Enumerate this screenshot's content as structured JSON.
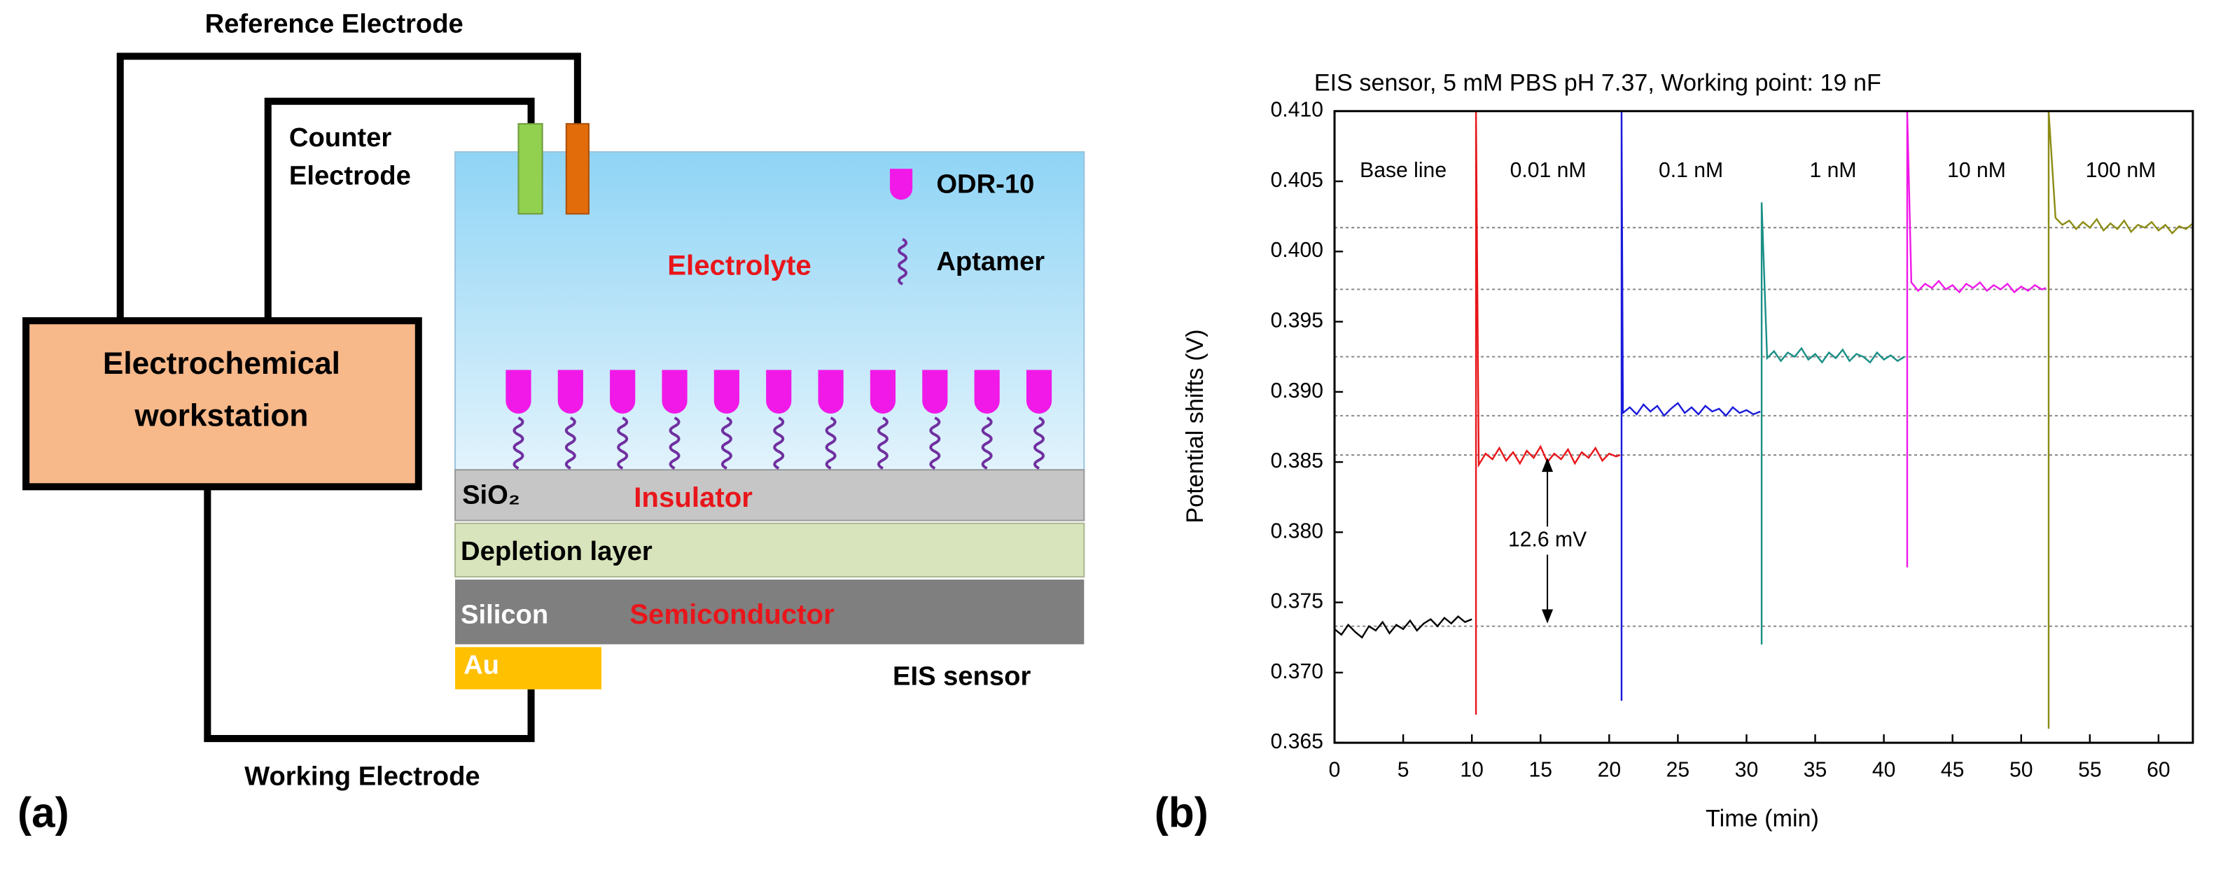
{
  "diagram": {
    "panel_label": "(a)",
    "reference_electrode": "Reference Electrode",
    "counter_electrode": [
      "Counter",
      "Electrode"
    ],
    "workstation": [
      "Electrochemical",
      "workstation"
    ],
    "receptor_legend": [
      "ODR-10",
      "Aptamer"
    ],
    "electrolyte": "Electrolyte",
    "layers": {
      "oxide": "SiO₂",
      "insulator": "Insulator",
      "depletion": "Depletion layer",
      "silicon": "Silicon",
      "semiconductor": "Semiconductor",
      "contact": "Au"
    },
    "sensor": "EIS sensor",
    "working_electrode": "Working Electrode"
  },
  "chart_data": {
    "type": "line",
    "panel_label": "(b)",
    "title": "EIS sensor, 5 mM PBS pH 7.37, Working point: 19 nF",
    "x_label": "Time (min)",
    "y_label": "Potential shifts (V)",
    "xlim": [
      0,
      62.5
    ],
    "xticks": [
      0,
      5,
      10,
      15,
      20,
      25,
      30,
      35,
      40,
      45,
      50,
      55,
      60
    ],
    "ylim": [
      0.365,
      0.41
    ],
    "yticks": [
      0.365,
      {
        "value": 0.37,
        "label": "0.370"
      },
      0.375,
      {
        "value": 0.38,
        "label": "0.380"
      },
      0.385,
      {
        "value": 0.39,
        "label": "0.390"
      },
      0.395,
      {
        "value": 0.4,
        "label": "0.400"
      },
      0.405,
      {
        "value": 0.41,
        "label": "0.410"
      }
    ],
    "hlines": [
      0.4017,
      0.3973,
      0.3925,
      0.3883,
      0.3855,
      0.3733
    ],
    "annotation": "12.6 mV",
    "series": [
      {
        "name": "Base line",
        "color": "#000000",
        "x": [
          0,
          0.5,
          1,
          1.5,
          2,
          2.5,
          3,
          3.5,
          4,
          4.5,
          5,
          5.5,
          6,
          6.5,
          7,
          7.5,
          8,
          8.5,
          9,
          9.5,
          10
        ],
        "values": [
          0.3731,
          0.3727,
          0.3734,
          0.3729,
          0.3725,
          0.3733,
          0.373,
          0.3736,
          0.3728,
          0.3734,
          0.3731,
          0.3737,
          0.373,
          0.3735,
          0.3738,
          0.3733,
          0.3739,
          0.3735,
          0.374,
          0.3736,
          0.3738
        ]
      },
      {
        "name": "0.01 nM",
        "color": "#e8161b",
        "x": [
          10.3,
          10.3,
          10.5,
          11,
          11.5,
          12,
          12.5,
          13,
          13.5,
          14,
          14.5,
          15,
          15.5,
          16,
          16.5,
          17,
          17.5,
          18,
          18.5,
          19,
          19.5,
          20,
          20.5,
          20.8
        ],
        "values": [
          0.367,
          0.41,
          0.3848,
          0.3856,
          0.3852,
          0.386,
          0.3851,
          0.3857,
          0.3849,
          0.3858,
          0.3853,
          0.3861,
          0.385,
          0.3856,
          0.3852,
          0.3859,
          0.3849,
          0.3857,
          0.3853,
          0.386,
          0.3851,
          0.3856,
          0.3854,
          0.3855
        ]
      },
      {
        "name": "0.1 nM",
        "color": "#1a1adc",
        "x": [
          20.9,
          20.9,
          21,
          21.5,
          22,
          22.5,
          23,
          23.5,
          24,
          24.5,
          25,
          25.5,
          26,
          26.5,
          27,
          27.5,
          28,
          28.5,
          29,
          29.5,
          30,
          30.5,
          31
        ],
        "values": [
          0.368,
          0.41,
          0.3885,
          0.3889,
          0.3884,
          0.3891,
          0.3886,
          0.389,
          0.3883,
          0.3888,
          0.3892,
          0.3885,
          0.3889,
          0.3884,
          0.389,
          0.3886,
          0.3888,
          0.3883,
          0.3889,
          0.3885,
          0.3887,
          0.3884,
          0.3886
        ]
      },
      {
        "name": "1 nM",
        "color": "#1a8f86",
        "x": [
          31.1,
          31.1,
          31.5,
          32,
          32.5,
          33,
          33.5,
          34,
          34.5,
          35,
          35.5,
          36,
          36.5,
          37,
          37.5,
          38,
          38.5,
          39,
          39.5,
          40,
          40.5,
          41,
          41.5
        ],
        "values": [
          0.372,
          0.4035,
          0.3924,
          0.3929,
          0.3922,
          0.3928,
          0.3925,
          0.3931,
          0.3923,
          0.3927,
          0.3921,
          0.3928,
          0.3924,
          0.393,
          0.3922,
          0.3927,
          0.3925,
          0.3921,
          0.3928,
          0.3923,
          0.3926,
          0.3922,
          0.3925
        ]
      },
      {
        "name": "10 nM",
        "color": "#f019e8",
        "x": [
          41.7,
          41.7,
          42,
          42.5,
          43,
          43.5,
          44,
          44.5,
          45,
          45.5,
          46,
          46.5,
          47,
          47.5,
          48,
          48.5,
          49,
          49.5,
          50,
          50.5,
          51,
          51.5,
          51.8
        ],
        "values": [
          0.3775,
          0.41,
          0.3978,
          0.3972,
          0.3977,
          0.3974,
          0.3979,
          0.3973,
          0.3976,
          0.3971,
          0.3977,
          0.3974,
          0.3978,
          0.3972,
          0.3976,
          0.3973,
          0.3977,
          0.3971,
          0.3975,
          0.3972,
          0.3976,
          0.3973,
          0.3974
        ]
      },
      {
        "name": "100 nM",
        "color": "#8c8c14",
        "x": [
          52,
          52,
          52.5,
          53,
          53.5,
          54,
          54.5,
          55,
          55.5,
          56,
          56.5,
          57,
          57.5,
          58,
          58.5,
          59,
          59.5,
          60,
          60.5,
          61,
          61.5,
          62,
          62.5
        ],
        "values": [
          0.366,
          0.41,
          0.4024,
          0.4019,
          0.4022,
          0.4016,
          0.4021,
          0.4017,
          0.4023,
          0.4015,
          0.402,
          0.4016,
          0.4022,
          0.4014,
          0.4019,
          0.4017,
          0.4021,
          0.4015,
          0.4019,
          0.4013,
          0.4018,
          0.4016,
          0.402
        ]
      }
    ]
  }
}
